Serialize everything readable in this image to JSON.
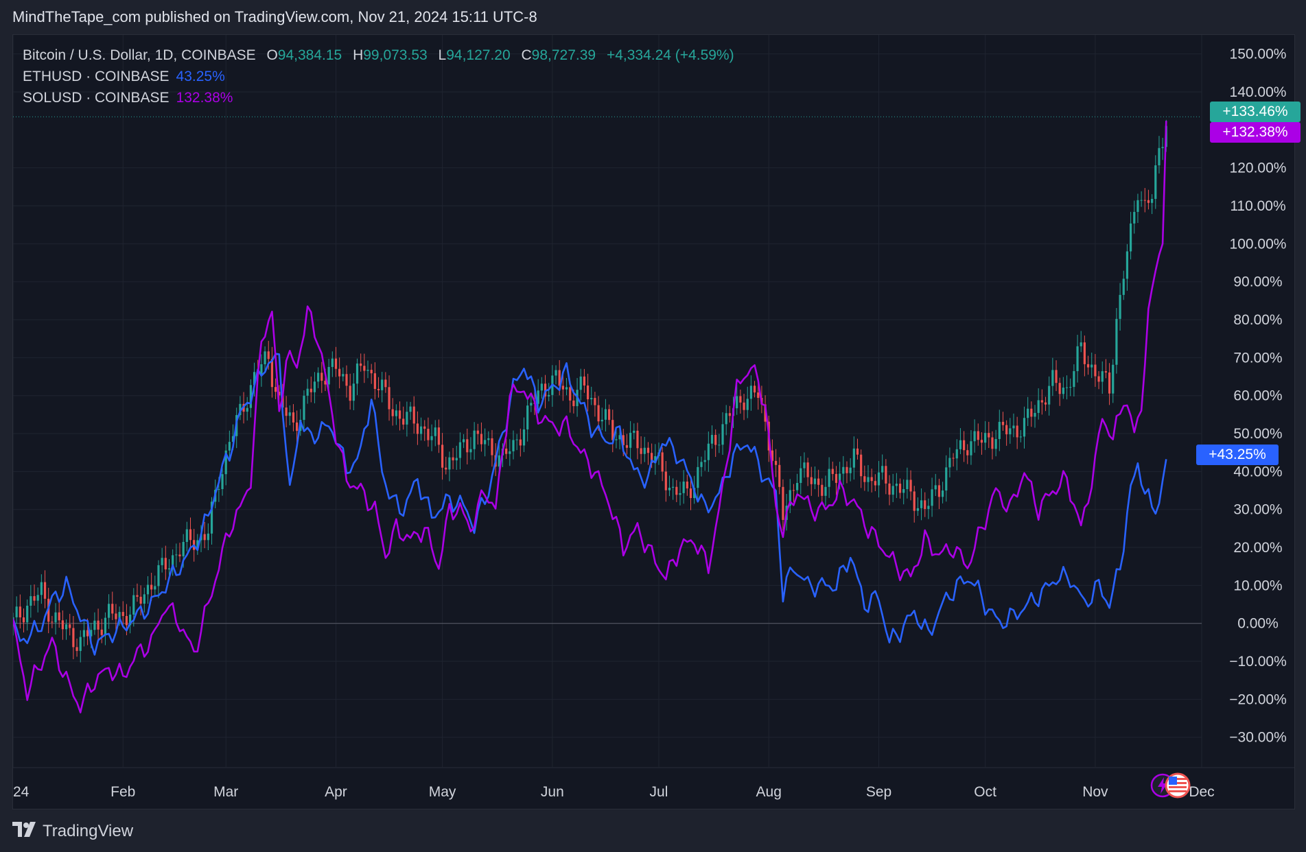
{
  "header": {
    "published": "MindTheTape_com published on TradingView.com, Nov 21, 2024 15:11 UTC-8"
  },
  "legend": {
    "btc_symbol": "Bitcoin / U.S. Dollar, 1D, COINBASE",
    "o_label": "O",
    "o_value": "94,384.15",
    "h_label": "H",
    "h_value": "99,073.53",
    "l_label": "L",
    "l_value": "94,127.20",
    "c_label": "C",
    "c_value": "98,727.39",
    "change": "+4,334.24 (+4.59%)",
    "eth_symbol": "ETHUSD · COINBASE",
    "eth_value": "43.25%",
    "sol_symbol": "SOLUSD · COINBASE",
    "sol_value": "132.38%"
  },
  "badges": {
    "btc": "+133.46%",
    "sol": "+132.38%",
    "eth": "+43.25%"
  },
  "footer": {
    "brand": "TradingView"
  },
  "colors": {
    "btc": "#26a69a",
    "eth": "#2962ff",
    "sol": "#ab00e6",
    "up": "#26a69a",
    "down": "#ef5350",
    "grid": "#1f2430",
    "text": "#d1d4dc"
  },
  "chart_data": {
    "type": "line",
    "title": "Bitcoin / U.S. Dollar, 1D, COINBASE",
    "y_unit": "%",
    "ylim": [
      -38,
      155
    ],
    "y_ticks": [
      150,
      140,
      120,
      110,
      100,
      90,
      80,
      70,
      60,
      50,
      40,
      30,
      20,
      10,
      0,
      -10,
      -20,
      -30
    ],
    "y_tick_labels": [
      "150.00%",
      "140.00%",
      "120.00%",
      "110.00%",
      "100.00%",
      "90.00%",
      "80.00%",
      "70.00%",
      "60.00%",
      "50.00%",
      "40.00%",
      "30.00%",
      "20.00%",
      "10.00%",
      "0.00%",
      "−10.00%",
      "−20.00%",
      "−30.00%"
    ],
    "x_domain": [
      "2024-01-01",
      "2024-12-01"
    ],
    "x_ticks": [
      {
        "label": "24",
        "date": "2024-01-01"
      },
      {
        "label": "Feb",
        "date": "2024-02-01"
      },
      {
        "label": "Mar",
        "date": "2024-03-01"
      },
      {
        "label": "Apr",
        "date": "2024-04-01"
      },
      {
        "label": "May",
        "date": "2024-05-01"
      },
      {
        "label": "Jun",
        "date": "2024-06-01"
      },
      {
        "label": "Jul",
        "date": "2024-07-01"
      },
      {
        "label": "Aug",
        "date": "2024-08-01"
      },
      {
        "label": "Sep",
        "date": "2024-09-01"
      },
      {
        "label": "Oct",
        "date": "2024-10-01"
      },
      {
        "label": "Nov",
        "date": "2024-11-01"
      },
      {
        "label": "Dec",
        "date": "2024-12-01"
      }
    ],
    "series": [
      {
        "name": "Bitcoin / U.S. Dollar",
        "style": "candles",
        "color": "#26a69a",
        "x": [
          "2024-01-01",
          "2024-01-05",
          "2024-01-09",
          "2024-01-12",
          "2024-01-16",
          "2024-01-20",
          "2024-01-24",
          "2024-01-28",
          "2024-02-01",
          "2024-02-05",
          "2024-02-09",
          "2024-02-13",
          "2024-02-17",
          "2024-02-21",
          "2024-02-25",
          "2024-02-28",
          "2024-03-02",
          "2024-03-05",
          "2024-03-09",
          "2024-03-13",
          "2024-03-16",
          "2024-03-20",
          "2024-03-24",
          "2024-03-28",
          "2024-04-01",
          "2024-04-05",
          "2024-04-09",
          "2024-04-13",
          "2024-04-17",
          "2024-04-21",
          "2024-04-25",
          "2024-04-29",
          "2024-05-02",
          "2024-05-06",
          "2024-05-10",
          "2024-05-14",
          "2024-05-18",
          "2024-05-21",
          "2024-05-25",
          "2024-05-29",
          "2024-06-02",
          "2024-06-06",
          "2024-06-10",
          "2024-06-14",
          "2024-06-18",
          "2024-06-22",
          "2024-06-26",
          "2024-06-30",
          "2024-07-05",
          "2024-07-09",
          "2024-07-13",
          "2024-07-17",
          "2024-07-21",
          "2024-07-25",
          "2024-07-29",
          "2024-08-02",
          "2024-08-05",
          "2024-08-09",
          "2024-08-13",
          "2024-08-17",
          "2024-08-21",
          "2024-08-25",
          "2024-08-29",
          "2024-09-02",
          "2024-09-06",
          "2024-09-10",
          "2024-09-14",
          "2024-09-18",
          "2024-09-22",
          "2024-09-26",
          "2024-09-30",
          "2024-10-04",
          "2024-10-08",
          "2024-10-12",
          "2024-10-16",
          "2024-10-20",
          "2024-10-24",
          "2024-10-28",
          "2024-11-01",
          "2024-11-05",
          "2024-11-07",
          "2024-11-09",
          "2024-11-11",
          "2024-11-13",
          "2024-11-15",
          "2024-11-17",
          "2024-11-19",
          "2024-11-21"
        ],
        "values": [
          0,
          5,
          8,
          2,
          -2,
          -5,
          -1,
          2,
          2,
          5,
          11,
          15,
          20,
          22,
          24,
          38,
          48,
          55,
          65,
          70,
          58,
          52,
          60,
          66,
          67,
          62,
          68,
          63,
          56,
          54,
          52,
          48,
          42,
          45,
          50,
          46,
          44,
          46,
          55,
          62,
          64,
          60,
          62,
          56,
          50,
          48,
          47,
          43,
          35,
          34,
          42,
          49,
          55,
          60,
          60,
          45,
          28,
          40,
          38,
          36,
          40,
          43,
          38,
          38,
          36,
          34,
          30,
          36,
          44,
          48,
          48,
          50,
          51,
          52,
          58,
          63,
          62,
          72,
          66,
          62,
          80,
          92,
          102,
          115,
          110,
          112,
          124,
          133.46
        ]
      },
      {
        "name": "ETHUSD · COINBASE",
        "style": "line",
        "color": "#2962ff",
        "x": [
          "2024-01-01",
          "2024-01-03",
          "2024-01-05",
          "2024-01-08",
          "2024-01-12",
          "2024-01-16",
          "2024-01-20",
          "2024-01-24",
          "2024-01-28",
          "2024-02-01",
          "2024-02-05",
          "2024-02-09",
          "2024-02-13",
          "2024-02-17",
          "2024-02-21",
          "2024-02-25",
          "2024-02-28",
          "2024-03-02",
          "2024-03-05",
          "2024-03-09",
          "2024-03-12",
          "2024-03-16",
          "2024-03-19",
          "2024-03-22",
          "2024-03-25",
          "2024-03-28",
          "2024-04-01",
          "2024-04-04",
          "2024-04-08",
          "2024-04-11",
          "2024-04-14",
          "2024-04-17",
          "2024-04-20",
          "2024-04-24",
          "2024-04-28",
          "2024-05-02",
          "2024-05-06",
          "2024-05-10",
          "2024-05-14",
          "2024-05-18",
          "2024-05-21",
          "2024-05-24",
          "2024-05-28",
          "2024-06-01",
          "2024-06-05",
          "2024-06-08",
          "2024-06-12",
          "2024-06-16",
          "2024-06-20",
          "2024-06-24",
          "2024-06-28",
          "2024-07-02",
          "2024-07-06",
          "2024-07-10",
          "2024-07-14",
          "2024-07-18",
          "2024-07-22",
          "2024-07-26",
          "2024-07-30",
          "2024-08-03",
          "2024-08-05",
          "2024-08-08",
          "2024-08-12",
          "2024-08-16",
          "2024-08-20",
          "2024-08-24",
          "2024-08-28",
          "2024-09-01",
          "2024-09-04",
          "2024-09-07",
          "2024-09-11",
          "2024-09-15",
          "2024-09-19",
          "2024-09-23",
          "2024-09-27",
          "2024-10-01",
          "2024-10-05",
          "2024-10-09",
          "2024-10-13",
          "2024-10-17",
          "2024-10-21",
          "2024-10-25",
          "2024-10-29",
          "2024-11-02",
          "2024-11-05",
          "2024-11-08",
          "2024-11-11",
          "2024-11-13",
          "2024-11-15",
          "2024-11-17",
          "2024-11-19",
          "2024-11-21"
        ],
        "values": [
          0,
          -5,
          -3,
          -2,
          6,
          10,
          2,
          -6,
          -3,
          -1,
          2,
          5,
          10,
          15,
          20,
          28,
          38,
          45,
          55,
          62,
          68,
          70,
          34,
          54,
          48,
          52,
          50,
          40,
          45,
          60,
          40,
          32,
          30,
          38,
          28,
          32,
          32,
          26,
          35,
          50,
          62,
          68,
          58,
          62,
          66,
          60,
          52,
          48,
          50,
          40,
          38,
          48,
          45,
          38,
          30,
          34,
          44,
          48,
          40,
          34,
          8,
          15,
          10,
          10,
          10,
          18,
          5,
          7,
          -5,
          -2,
          3,
          -3,
          5,
          10,
          12,
          5,
          0,
          2,
          5,
          8,
          12,
          12,
          5,
          10,
          5,
          15,
          35,
          42,
          35,
          30,
          32,
          43.25
        ]
      },
      {
        "name": "SOLUSD · COINBASE",
        "style": "line",
        "color": "#ab00e6",
        "x": [
          "2024-01-01",
          "2024-01-03",
          "2024-01-05",
          "2024-01-08",
          "2024-01-12",
          "2024-01-16",
          "2024-01-20",
          "2024-01-24",
          "2024-01-28",
          "2024-02-01",
          "2024-02-05",
          "2024-02-09",
          "2024-02-13",
          "2024-02-17",
          "2024-02-21",
          "2024-02-25",
          "2024-02-28",
          "2024-03-02",
          "2024-03-05",
          "2024-03-08",
          "2024-03-11",
          "2024-03-14",
          "2024-03-16",
          "2024-03-18",
          "2024-03-21",
          "2024-03-24",
          "2024-03-27",
          "2024-03-30",
          "2024-04-01",
          "2024-04-04",
          "2024-04-08",
          "2024-04-12",
          "2024-04-15",
          "2024-04-18",
          "2024-04-22",
          "2024-04-26",
          "2024-04-30",
          "2024-05-03",
          "2024-05-06",
          "2024-05-09",
          "2024-05-13",
          "2024-05-16",
          "2024-05-20",
          "2024-05-24",
          "2024-05-28",
          "2024-06-01",
          "2024-06-05",
          "2024-06-09",
          "2024-06-13",
          "2024-06-17",
          "2024-06-21",
          "2024-06-25",
          "2024-06-29",
          "2024-07-03",
          "2024-07-07",
          "2024-07-11",
          "2024-07-15",
          "2024-07-19",
          "2024-07-23",
          "2024-07-27",
          "2024-07-31",
          "2024-08-03",
          "2024-08-05",
          "2024-08-09",
          "2024-08-13",
          "2024-08-17",
          "2024-08-21",
          "2024-08-25",
          "2024-08-29",
          "2024-09-02",
          "2024-09-06",
          "2024-09-10",
          "2024-09-14",
          "2024-09-18",
          "2024-09-22",
          "2024-09-26",
          "2024-09-30",
          "2024-10-04",
          "2024-10-08",
          "2024-10-12",
          "2024-10-16",
          "2024-10-20",
          "2024-10-24",
          "2024-10-28",
          "2024-11-01",
          "2024-11-03",
          "2024-11-06",
          "2024-11-09",
          "2024-11-12",
          "2024-11-14",
          "2024-11-16",
          "2024-11-18",
          "2024-11-20",
          "2024-11-21"
        ],
        "values": [
          0,
          -10,
          -18,
          -12,
          -5,
          -15,
          -22,
          -15,
          -12,
          -14,
          -8,
          -5,
          5,
          0,
          -8,
          5,
          15,
          25,
          30,
          38,
          75,
          82,
          55,
          70,
          68,
          82,
          75,
          60,
          50,
          38,
          35,
          30,
          18,
          25,
          22,
          25,
          15,
          30,
          30,
          25,
          35,
          30,
          60,
          62,
          55,
          52,
          52,
          45,
          40,
          32,
          20,
          25,
          18,
          12,
          20,
          22,
          15,
          35,
          62,
          68,
          58,
          30,
          25,
          35,
          30,
          30,
          35,
          32,
          25,
          20,
          15,
          12,
          22,
          18,
          20,
          15,
          25,
          35,
          30,
          40,
          30,
          35,
          38,
          25,
          42,
          55,
          48,
          60,
          50,
          58,
          80,
          95,
          100,
          132.38
        ]
      }
    ]
  }
}
